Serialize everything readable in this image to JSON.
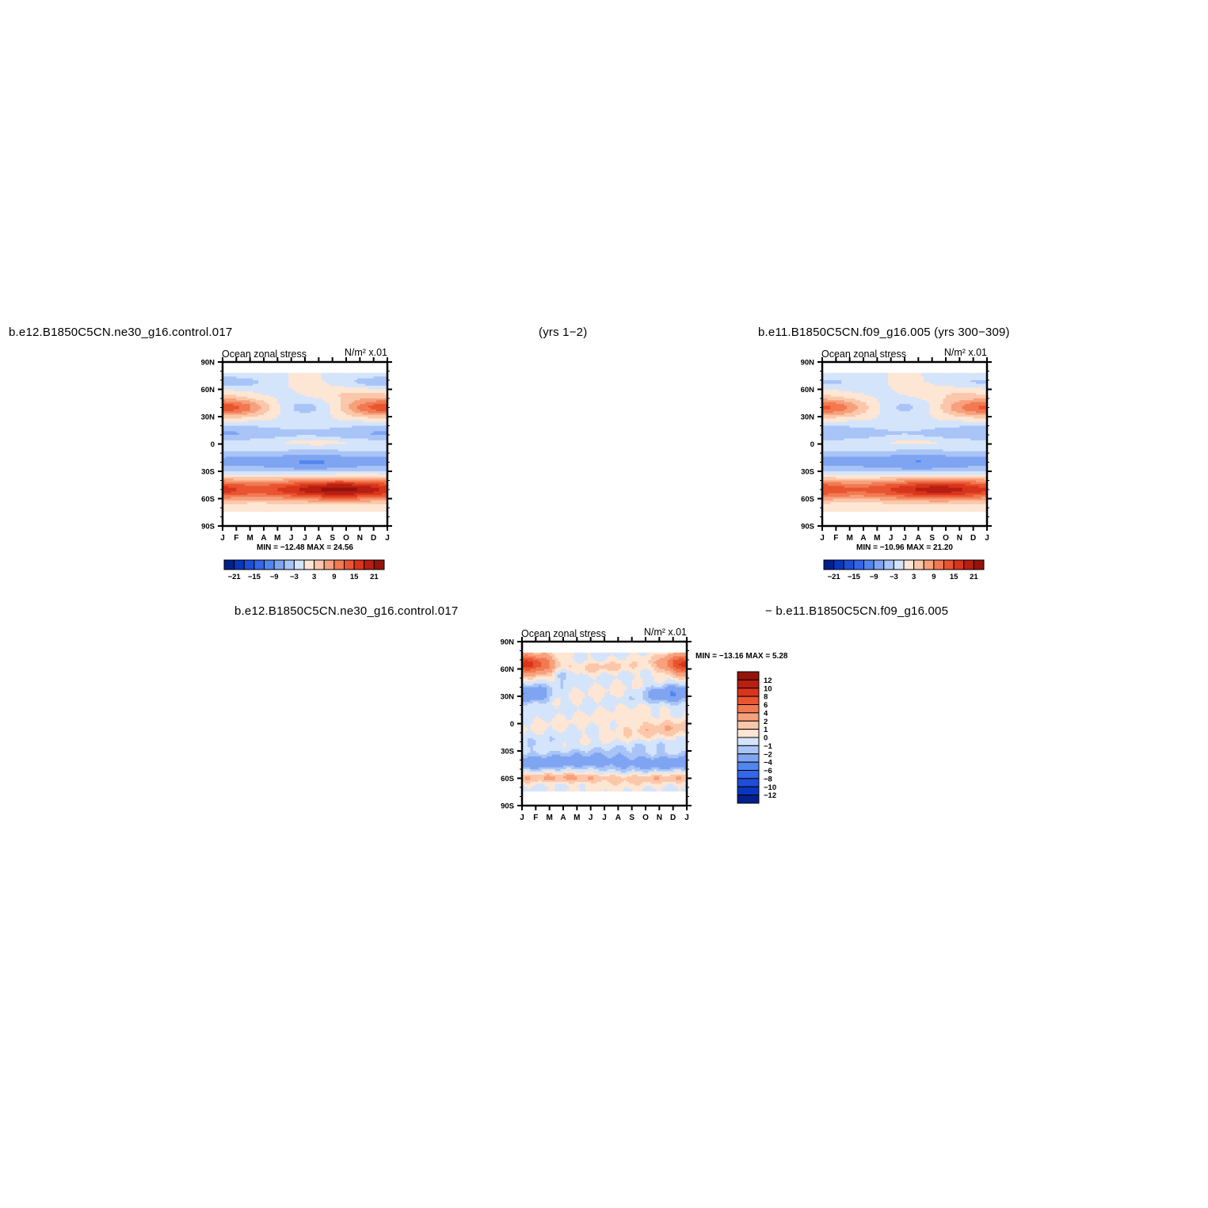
{
  "header": {
    "case1_name": "b.e12.B1850C5CN.ne30_g16.control.017",
    "case1_years": "(yrs  1−2)",
    "case2": "b.e11.B1850C5CN.f09_g16.005 (yrs  300−309)",
    "diff_case1": "b.e12.B1850C5CN.ne30_g16.control.017",
    "diff_case2": "−  b.e11.B1850C5CN.f09_g16.005"
  },
  "chart_data": [
    {
      "type": "contour",
      "title": "Ocean zonal stress",
      "units": "N/m²  x.01",
      "x_ticks": [
        "J",
        "F",
        "M",
        "A",
        "M",
        "J",
        "J",
        "A",
        "S",
        "O",
        "N",
        "D",
        "J"
      ],
      "y_ticks": [
        "90N",
        "60N",
        "30N",
        "0",
        "30S",
        "60S",
        "90S"
      ],
      "ylim": [
        -90,
        90
      ],
      "stats": "MIN = −12.48  MAX =   24.56",
      "min": -12.48,
      "max": 24.56,
      "colorbar_orientation": "horizontal",
      "colorbar_levels": [
        -24,
        -21,
        -18,
        -15,
        -12,
        -9,
        -6,
        -3,
        0,
        3,
        6,
        9,
        12,
        15,
        18,
        21,
        24
      ],
      "colorbar_labels": [
        "−21",
        "−15",
        "−9",
        "−3",
        "3",
        "9",
        "15",
        "21"
      ],
      "colorbar_colors": [
        "#00208c",
        "#0a36bf",
        "#1f4ed6",
        "#3366e8",
        "#5286ef",
        "#7fa4f2",
        "#a9c4f7",
        "#d4e4fa",
        "#fde6d4",
        "#fbc7aa",
        "#f7a07c",
        "#f27a52",
        "#e85530",
        "#d9351c",
        "#b81f12",
        "#94130d"
      ],
      "field": "case1"
    },
    {
      "type": "contour",
      "title": "Ocean zonal stress",
      "units": "N/m²  x.01",
      "x_ticks": [
        "J",
        "F",
        "M",
        "A",
        "M",
        "J",
        "J",
        "A",
        "S",
        "O",
        "N",
        "D",
        "J"
      ],
      "y_ticks": [
        "90N",
        "60N",
        "30N",
        "0",
        "30S",
        "60S",
        "90S"
      ],
      "ylim": [
        -90,
        90
      ],
      "stats": "MIN = −10.96  MAX =   21.20",
      "min": -10.96,
      "max": 21.2,
      "colorbar_orientation": "horizontal",
      "colorbar_levels": [
        -24,
        -21,
        -18,
        -15,
        -12,
        -9,
        -6,
        -3,
        0,
        3,
        6,
        9,
        12,
        15,
        18,
        21,
        24
      ],
      "colorbar_labels": [
        "−21",
        "−15",
        "−9",
        "−3",
        "3",
        "9",
        "15",
        "21"
      ],
      "colorbar_colors": [
        "#00208c",
        "#0a36bf",
        "#1f4ed6",
        "#3366e8",
        "#5286ef",
        "#7fa4f2",
        "#a9c4f7",
        "#d4e4fa",
        "#fde6d4",
        "#fbc7aa",
        "#f7a07c",
        "#f27a52",
        "#e85530",
        "#d9351c",
        "#b81f12",
        "#94130d"
      ],
      "field": "case2"
    },
    {
      "type": "contour",
      "title": "Ocean zonal stress",
      "units": "N/m²  x.01",
      "x_ticks": [
        "J",
        "F",
        "M",
        "A",
        "M",
        "J",
        "J",
        "A",
        "S",
        "O",
        "N",
        "D",
        "J"
      ],
      "y_ticks": [
        "90N",
        "60N",
        "30N",
        "0",
        "30S",
        "60S",
        "90S"
      ],
      "ylim": [
        -90,
        90
      ],
      "stats": "MIN = −13.16  MAX =    5.28",
      "min": -13.16,
      "max": 5.28,
      "colorbar_orientation": "vertical",
      "colorbar_levels": [
        -14,
        -12,
        -10,
        -8,
        -6,
        -4,
        -2,
        -1,
        0,
        1,
        2,
        4,
        6,
        8,
        10,
        12,
        14
      ],
      "colorbar_labels": [
        "12",
        "10",
        "8",
        "6",
        "4",
        "2",
        "1",
        "0",
        "−1",
        "−2",
        "−4",
        "−6",
        "−8",
        "−10",
        "−12"
      ],
      "colorbar_colors": [
        "#94130d",
        "#b81f12",
        "#d9351c",
        "#e85530",
        "#f27a52",
        "#f7a07c",
        "#fbc7aa",
        "#fde6d4",
        "#d4e4fa",
        "#a9c4f7",
        "#7fa4f2",
        "#5286ef",
        "#3366e8",
        "#1f4ed6",
        "#0a36bf",
        "#00208c"
      ],
      "field": "diff"
    }
  ]
}
